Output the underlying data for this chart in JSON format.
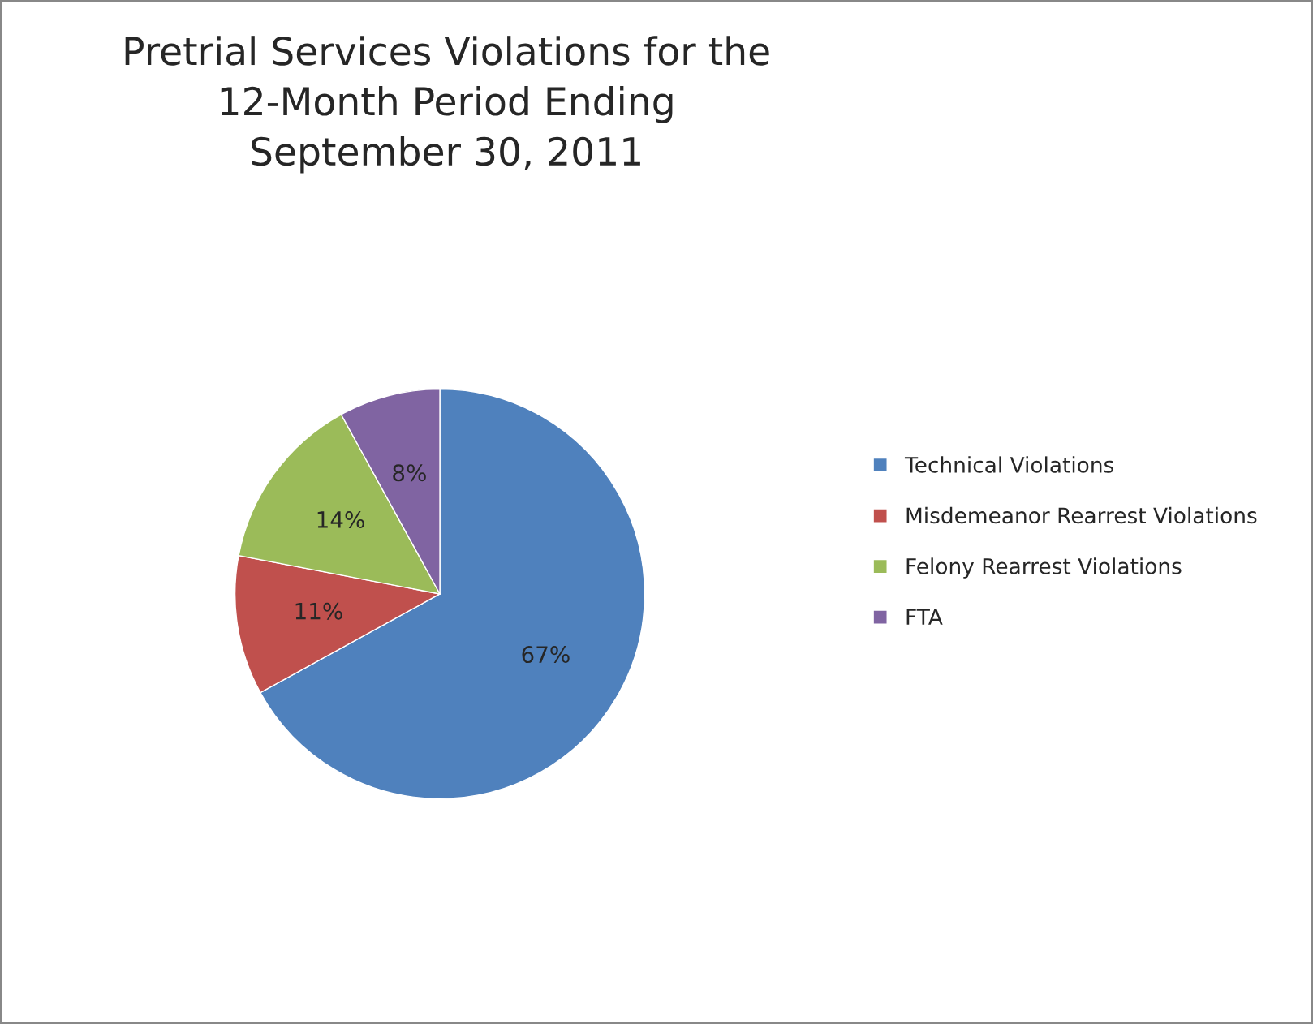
{
  "chart_data": {
    "type": "pie",
    "title": "Pretrial Services Violations for the\n12-Month Period Ending\nSeptember 30, 2011",
    "categories": [
      "Technical Violations",
      "Misdemeanor Rearrest Violations",
      "Felony Rearrest Violations",
      "FTA"
    ],
    "values": [
      67,
      11,
      14,
      8
    ],
    "colors": [
      "#4f81bd",
      "#c0504d",
      "#9bbb59",
      "#8064a2"
    ],
    "value_labels": [
      "67%",
      "11%",
      "14%",
      "8%"
    ],
    "legend": "right"
  }
}
